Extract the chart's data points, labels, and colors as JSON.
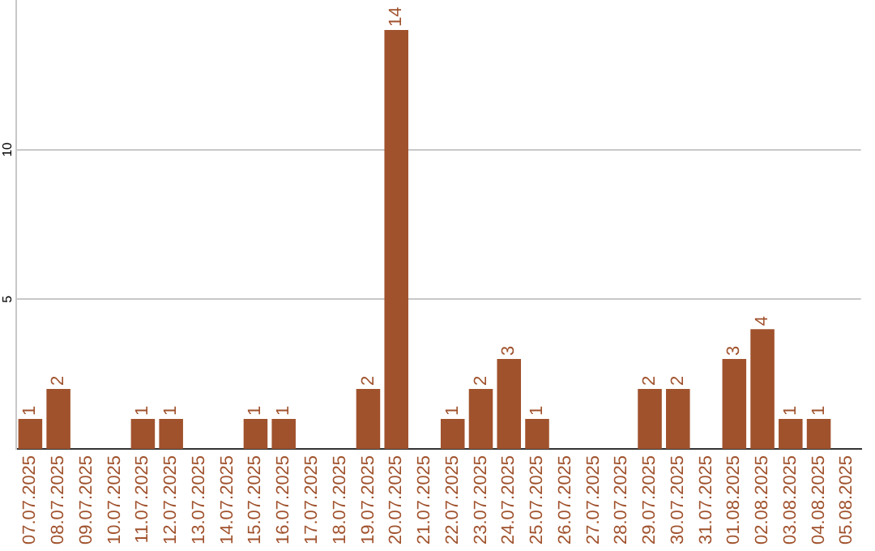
{
  "chart_data": {
    "type": "bar",
    "categories": [
      "07.07.2025",
      "08.07.2025",
      "09.07.2025",
      "10.07.2025",
      "11.07.2025",
      "12.07.2025",
      "13.07.2025",
      "14.07.2025",
      "15.07.2025",
      "16.07.2025",
      "17.07.2025",
      "18.07.2025",
      "19.07.2025",
      "20.07.2025",
      "21.07.2025",
      "22.07.2025",
      "23.07.2025",
      "24.07.2025",
      "25.07.2025",
      "26.07.2025",
      "27.07.2025",
      "28.07.2025",
      "29.07.2025",
      "30.07.2025",
      "31.07.2025",
      "01.08.2025",
      "02.08.2025",
      "03.08.2025",
      "04.08.2025",
      "05.08.2025"
    ],
    "values": [
      1,
      2,
      0,
      0,
      1,
      1,
      0,
      0,
      1,
      1,
      0,
      0,
      2,
      14,
      0,
      1,
      2,
      3,
      1,
      0,
      0,
      0,
      2,
      2,
      0,
      3,
      4,
      1,
      1,
      0
    ],
    "value_labels": [
      "1",
      "2",
      null,
      null,
      "1",
      "1",
      null,
      null,
      "1",
      "1",
      null,
      null,
      "2",
      "14",
      null,
      "1",
      "2",
      "3",
      "1",
      null,
      null,
      null,
      "2",
      "2",
      null,
      "3",
      "4",
      "1",
      "1",
      null
    ],
    "color": "#a0522d",
    "ylim": [
      0,
      15
    ],
    "yticks": [
      5,
      10
    ],
    "grid": "y",
    "legend": false
  }
}
